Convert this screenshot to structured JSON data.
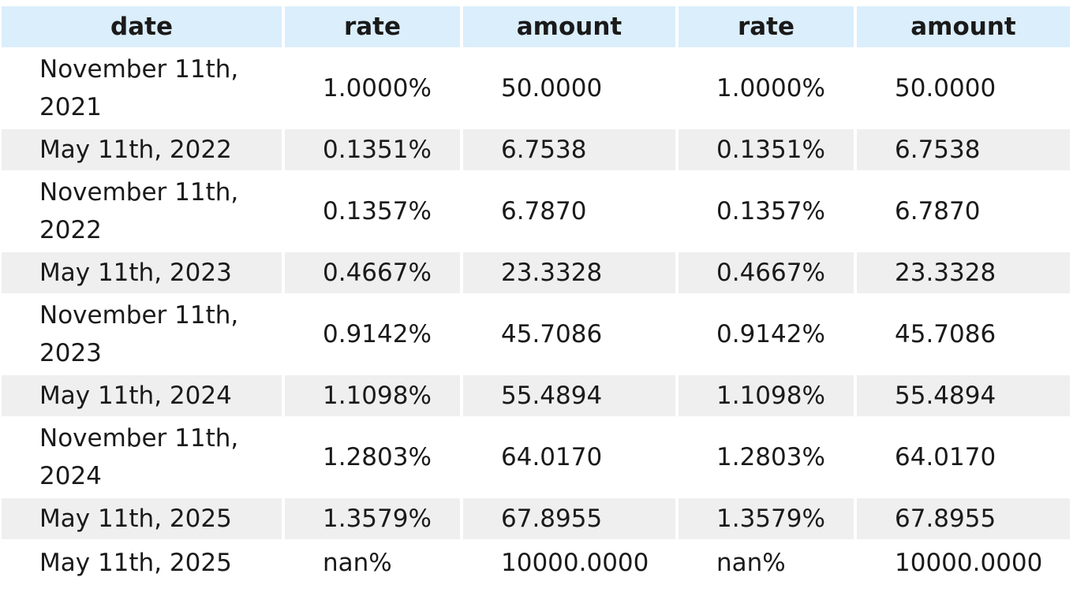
{
  "table": {
    "headers": [
      "date",
      "rate",
      "amount",
      "rate",
      "amount"
    ],
    "rows": [
      {
        "date": "November 11th, 2021",
        "rate1": "1.0000%",
        "amount1": "50.0000",
        "rate2": "1.0000%",
        "amount2": "50.0000"
      },
      {
        "date": "May 11th, 2022",
        "rate1": "0.1351%",
        "amount1": "6.7538",
        "rate2": "0.1351%",
        "amount2": "6.7538"
      },
      {
        "date": "November 11th, 2022",
        "rate1": "0.1357%",
        "amount1": "6.7870",
        "rate2": "0.1357%",
        "amount2": "6.7870"
      },
      {
        "date": "May 11th, 2023",
        "rate1": "0.4667%",
        "amount1": "23.3328",
        "rate2": "0.4667%",
        "amount2": "23.3328"
      },
      {
        "date": "November 11th, 2023",
        "rate1": "0.9142%",
        "amount1": "45.7086",
        "rate2": "0.9142%",
        "amount2": "45.7086"
      },
      {
        "date": "May 11th, 2024",
        "rate1": "1.1098%",
        "amount1": "55.4894",
        "rate2": "1.1098%",
        "amount2": "55.4894"
      },
      {
        "date": "November 11th, 2024",
        "rate1": "1.2803%",
        "amount1": "64.0170",
        "rate2": "1.2803%",
        "amount2": "64.0170"
      },
      {
        "date": "May 11th, 2025",
        "rate1": "1.3579%",
        "amount1": "67.8955",
        "rate2": "1.3579%",
        "amount2": "67.8955"
      },
      {
        "date": "May 11th, 2025",
        "rate1": "nan%",
        "amount1": "10000.0000",
        "rate2": "nan%",
        "amount2": "10000.0000"
      }
    ]
  },
  "colors": {
    "header_bg": "#dbeefc",
    "alt_row_bg": "#efefef",
    "row_bg": "#ffffff"
  }
}
